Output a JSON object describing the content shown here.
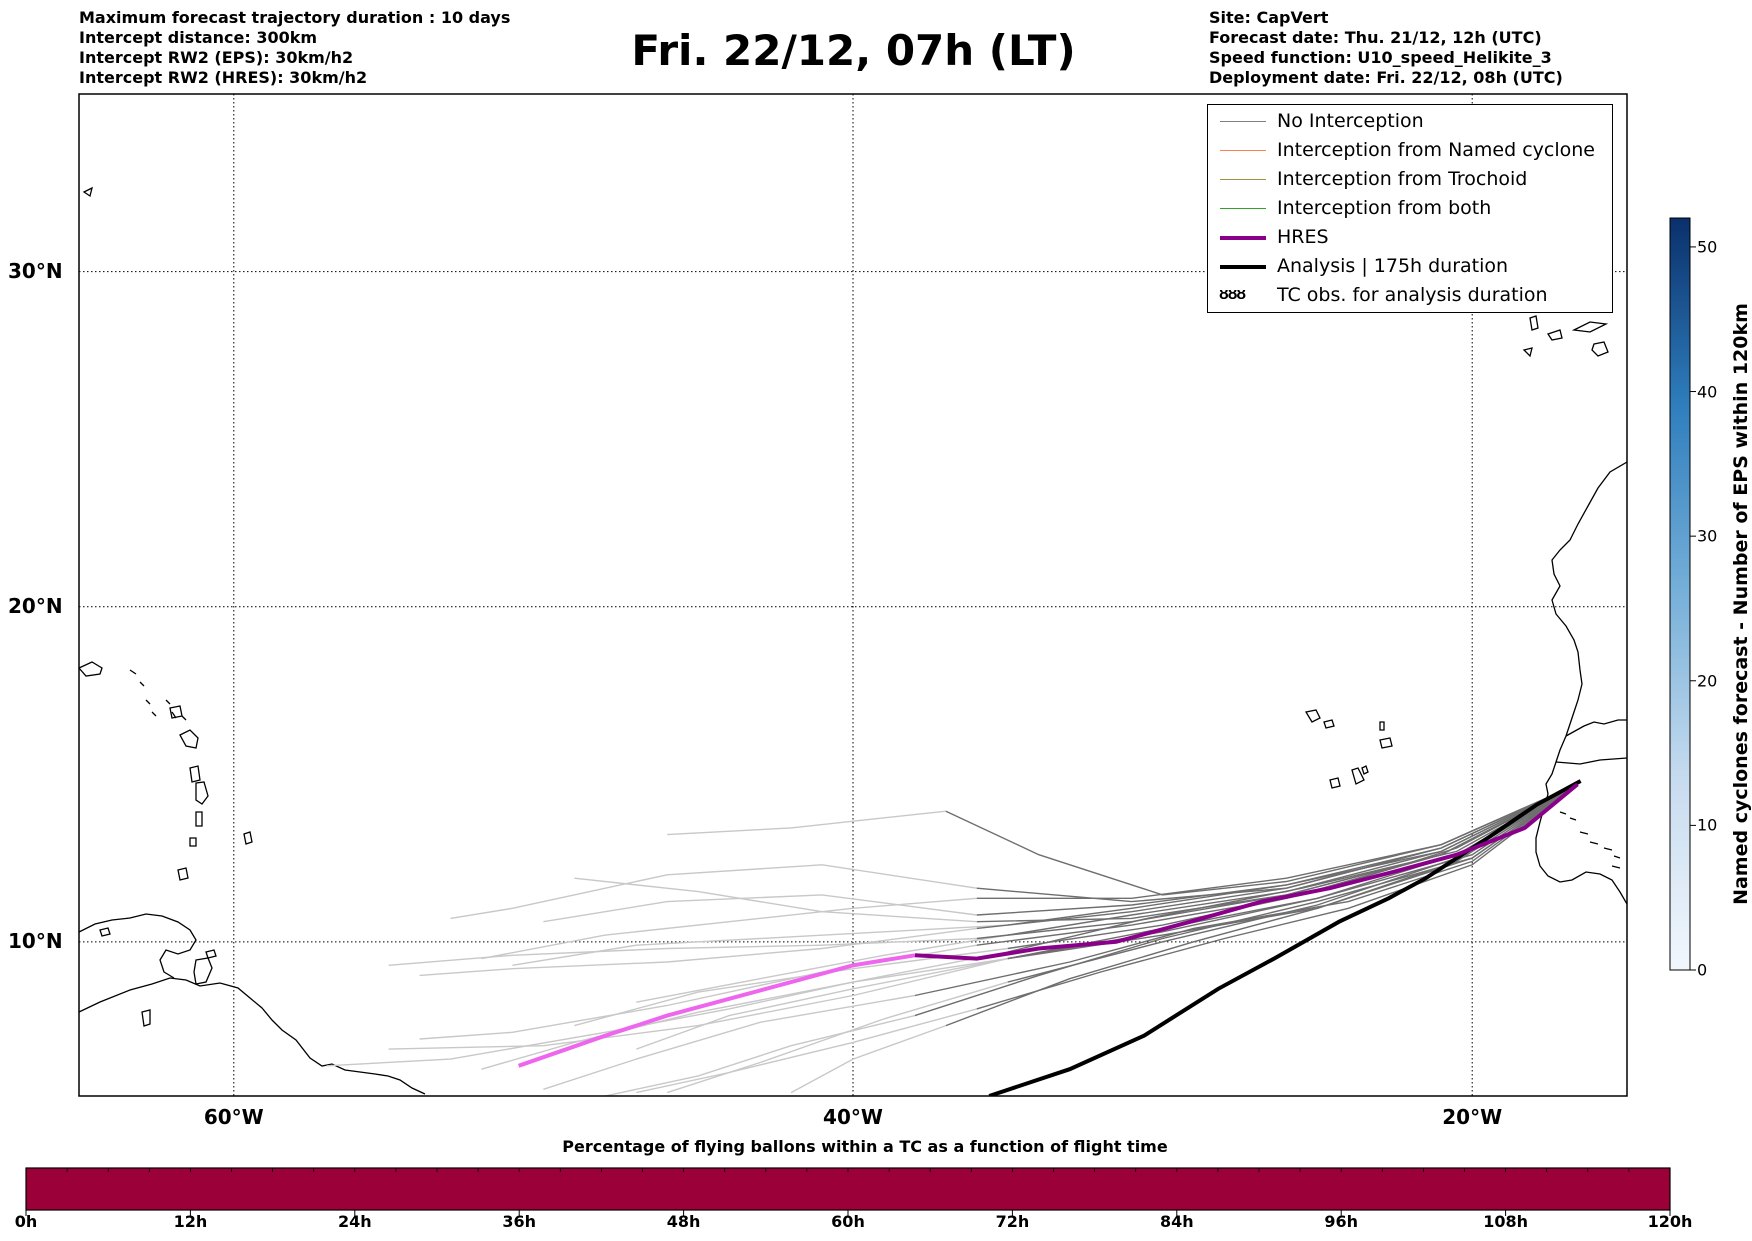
{
  "header_left": [
    "Maximum forecast trajectory duration : 10 days",
    "Intercept distance: 300km",
    "Intercept RW2 (EPS):  30km/h2",
    "Intercept RW2 (HRES): 30km/h2"
  ],
  "header_right": [
    "Site: CapVert",
    "Forecast date: Thu. 21/12, 12h (UTC)",
    "Speed function: U10_speed_Helikite_3",
    "Deployment date: Fri. 22/12, 08h (UTC)"
  ],
  "title": "Fri. 22/12, 07h (LT)",
  "map": {
    "lat_labels": [
      {
        "label": "30°N",
        "lat": 30
      },
      {
        "label": "20°N",
        "lat": 20
      },
      {
        "label": "10°N",
        "lat": 10
      }
    ],
    "lon_labels": [
      {
        "label": "60°W",
        "lon": -60
      },
      {
        "label": "40°W",
        "lon": -40
      },
      {
        "label": "20°W",
        "lon": -20
      }
    ],
    "extent": {
      "lon_min": -65,
      "lon_max": -15,
      "lat_min": 5.4,
      "lat_max": 35.3
    },
    "gridlines": "dotted"
  },
  "legend": {
    "placement": "top-right",
    "items": [
      {
        "label": "No Interception",
        "color": "#808080",
        "width": 1.5
      },
      {
        "label": "Interception from Named cyclone",
        "color": "#ff7f50",
        "width": 1.5
      },
      {
        "label": "Interception from Trochoid",
        "color": "#a09040",
        "width": 1.5
      },
      {
        "label": "Interception from both",
        "color": "#33a02c",
        "width": 1.5
      },
      {
        "label": "HRES",
        "color": "#8b008b",
        "width": 4
      },
      {
        "label": "Analysis | 175h duration",
        "color": "#000000",
        "width": 4
      },
      {
        "label": "TC obs. for analysis duration",
        "symbol": "ᴕᴕᴕ"
      }
    ]
  },
  "colors": {
    "eps_late": "#6e6e6e",
    "eps_early": "#c8c8c8",
    "hres_early": "#ee66ee",
    "hres_late": "#8b008b",
    "analysis": "#000000",
    "timebar": "#9b0038"
  },
  "colorbar": {
    "title": "Named cyclones forecast - Number of EPS within 120km",
    "ticks": [
      0,
      10,
      20,
      30,
      40,
      50
    ],
    "range": [
      0,
      52
    ]
  },
  "timebar": {
    "title": "Percentage of flying ballons within a TC as a function of flight time",
    "ticks": [
      "0h",
      "12h",
      "24h",
      "36h",
      "48h",
      "60h",
      "72h",
      "84h",
      "96h",
      "108h",
      "120h"
    ]
  },
  "tracks": {
    "analysis": [
      [
        -16.5,
        14.8
      ],
      [
        -17.9,
        14.1
      ],
      [
        -19.5,
        13.1
      ],
      [
        -21.5,
        11.9
      ],
      [
        -22.7,
        11.3
      ],
      [
        -24.3,
        10.6
      ],
      [
        -26.4,
        9.5
      ],
      [
        -28.2,
        8.6
      ],
      [
        -30.6,
        7.2
      ],
      [
        -33.0,
        6.2
      ],
      [
        -35.6,
        5.4
      ]
    ],
    "hres": [
      [
        -16.6,
        14.7
      ],
      [
        -18.3,
        13.4
      ],
      [
        -20.5,
        12.6
      ],
      [
        -22.5,
        12.1
      ],
      [
        -24.6,
        11.6
      ],
      [
        -26.8,
        11.2
      ],
      [
        -29.1,
        10.6
      ],
      [
        -31.5,
        10.0
      ],
      [
        -34.0,
        9.8
      ],
      [
        -36.0,
        9.5
      ],
      [
        -38.0,
        9.6
      ],
      [
        -40.0,
        9.3
      ],
      [
        -42.0,
        8.8
      ],
      [
        -44.0,
        8.3
      ],
      [
        -46.0,
        7.8
      ],
      [
        -48.0,
        7.2
      ],
      [
        -50.8,
        6.3
      ]
    ],
    "eps": [
      [
        [
          -16.6,
          14.7
        ],
        [
          -20.5,
          12.8
        ],
        [
          -25.0,
          11.5
        ],
        [
          -30.0,
          10.5
        ],
        [
          -35.0,
          9.8
        ],
        [
          -40.0,
          9.2
        ],
        [
          -45.0,
          8.5
        ],
        [
          -49.0,
          7.5
        ]
      ],
      [
        [
          -16.6,
          14.7
        ],
        [
          -20.0,
          12.5
        ],
        [
          -25.0,
          11.0
        ],
        [
          -30.0,
          10.2
        ],
        [
          -35.0,
          9.5
        ],
        [
          -40.0,
          8.6
        ],
        [
          -44.0,
          7.8
        ],
        [
          -47.0,
          6.8
        ]
      ],
      [
        [
          -16.6,
          14.7
        ],
        [
          -21.0,
          12.9
        ],
        [
          -26.0,
          11.8
        ],
        [
          -30.0,
          11.4
        ],
        [
          -34.0,
          12.6
        ],
        [
          -37.0,
          13.9
        ],
        [
          -42.0,
          13.4
        ],
        [
          -46.0,
          13.2
        ]
      ],
      [
        [
          -16.6,
          14.7
        ],
        [
          -21.0,
          12.7
        ],
        [
          -26.0,
          11.7
        ],
        [
          -31.0,
          11.1
        ],
        [
          -36.0,
          10.8
        ],
        [
          -41.0,
          11.4
        ],
        [
          -46.0,
          11.2
        ],
        [
          -50.0,
          10.6
        ]
      ],
      [
        [
          -16.6,
          14.7
        ],
        [
          -20.0,
          12.4
        ],
        [
          -24.0,
          11.2
        ],
        [
          -29.0,
          10.4
        ],
        [
          -33.0,
          9.4
        ],
        [
          -38.0,
          8.4
        ],
        [
          -43.0,
          7.6
        ],
        [
          -47.0,
          6.5
        ],
        [
          -50.0,
          5.6
        ]
      ],
      [
        [
          -16.6,
          14.7
        ],
        [
          -21.0,
          12.6
        ],
        [
          -26.0,
          11.4
        ],
        [
          -31.0,
          10.7
        ],
        [
          -36.0,
          10.6
        ],
        [
          -41.0,
          10.9
        ],
        [
          -45.0,
          11.5
        ],
        [
          -49.0,
          11.9
        ]
      ],
      [
        [
          -16.6,
          14.7
        ],
        [
          -20.5,
          12.5
        ],
        [
          -25.0,
          11.1
        ],
        [
          -30.0,
          10.0
        ],
        [
          -35.0,
          8.8
        ],
        [
          -39.0,
          7.7
        ],
        [
          -43.0,
          6.4
        ],
        [
          -46.0,
          5.5
        ]
      ],
      [
        [
          -16.6,
          14.7
        ],
        [
          -21.0,
          12.8
        ],
        [
          -26.0,
          11.6
        ],
        [
          -31.0,
          10.9
        ],
        [
          -36.0,
          10.4
        ],
        [
          -41.0,
          9.8
        ],
        [
          -46.0,
          9.4
        ],
        [
          -51.0,
          9.2
        ],
        [
          -54.0,
          9.0
        ]
      ],
      [
        [
          -16.6,
          14.7
        ],
        [
          -20.0,
          12.6
        ],
        [
          -25.0,
          11.3
        ],
        [
          -30.0,
          10.3
        ],
        [
          -35.0,
          9.5
        ],
        [
          -40.0,
          8.4
        ],
        [
          -45.0,
          7.5
        ],
        [
          -50.0,
          6.9
        ],
        [
          -55.0,
          6.8
        ]
      ],
      [
        [
          -16.6,
          14.7
        ],
        [
          -21.0,
          12.7
        ],
        [
          -26.0,
          11.5
        ],
        [
          -31.0,
          10.8
        ],
        [
          -35.0,
          10.2
        ],
        [
          -39.0,
          9.6
        ],
        [
          -43.0,
          8.9
        ],
        [
          -47.0,
          8.2
        ]
      ],
      [
        [
          -16.6,
          14.7
        ],
        [
          -20.5,
          12.4
        ],
        [
          -25.0,
          11.0
        ],
        [
          -29.0,
          10.0
        ],
        [
          -33.0,
          8.9
        ],
        [
          -37.0,
          7.5
        ],
        [
          -40.0,
          6.5
        ],
        [
          -42.0,
          5.5
        ]
      ],
      [
        [
          -16.6,
          14.7
        ],
        [
          -21.0,
          12.9
        ],
        [
          -26.0,
          11.9
        ],
        [
          -31.0,
          11.3
        ],
        [
          -36.0,
          11.3
        ],
        [
          -40.0,
          11.0
        ],
        [
          -44.0,
          10.6
        ],
        [
          -48.0,
          10.2
        ],
        [
          -52.0,
          9.5
        ]
      ],
      [
        [
          -16.6,
          14.7
        ],
        [
          -20.0,
          12.3
        ],
        [
          -24.0,
          11.0
        ],
        [
          -28.0,
          10.1
        ],
        [
          -32.0,
          9.1
        ],
        [
          -36.0,
          8.0
        ],
        [
          -40.0,
          7.0
        ],
        [
          -44.0,
          6.1
        ],
        [
          -47.0,
          5.5
        ]
      ],
      [
        [
          -16.6,
          14.7
        ],
        [
          -21.0,
          12.6
        ],
        [
          -26.0,
          11.3
        ],
        [
          -31.0,
          10.5
        ],
        [
          -36.0,
          9.9
        ],
        [
          -41.0,
          9.1
        ],
        [
          -46.0,
          8.1
        ],
        [
          -51.0,
          7.3
        ],
        [
          -54.0,
          7.1
        ]
      ],
      [
        [
          -16.6,
          14.7
        ],
        [
          -20.5,
          12.7
        ],
        [
          -25.5,
          11.6
        ],
        [
          -30.5,
          10.7
        ],
        [
          -35.0,
          9.7
        ],
        [
          -40.0,
          8.8
        ],
        [
          -45.0,
          7.9
        ],
        [
          -49.0,
          7.0
        ],
        [
          -52.0,
          6.2
        ]
      ],
      [
        [
          -16.6,
          14.7
        ],
        [
          -21.0,
          12.8
        ],
        [
          -26.0,
          11.7
        ],
        [
          -31.0,
          11.0
        ],
        [
          -35.0,
          10.5
        ],
        [
          -39.0,
          10.3
        ],
        [
          -43.0,
          10.1
        ],
        [
          -47.0,
          9.9
        ],
        [
          -51.0,
          9.3
        ]
      ],
      [
        [
          -16.6,
          14.7
        ],
        [
          -20.0,
          12.5
        ],
        [
          -25.0,
          11.2
        ],
        [
          -30.0,
          10.1
        ],
        [
          -34.0,
          9.0
        ],
        [
          -38.0,
          7.8
        ],
        [
          -42.0,
          6.9
        ],
        [
          -45.0,
          6.0
        ],
        [
          -48.0,
          5.4
        ]
      ],
      [
        [
          -16.6,
          14.7
        ],
        [
          -21.0,
          12.6
        ],
        [
          -26.0,
          11.4
        ],
        [
          -31.0,
          10.6
        ],
        [
          -36.0,
          10.1
        ],
        [
          -41.0,
          9.9
        ],
        [
          -46.0,
          9.8
        ],
        [
          -51.0,
          9.6
        ],
        [
          -55.0,
          9.3
        ]
      ],
      [
        [
          -16.6,
          14.7
        ],
        [
          -20.5,
          12.6
        ],
        [
          -25.0,
          11.3
        ],
        [
          -30.0,
          10.4
        ],
        [
          -35.0,
          9.5
        ],
        [
          -40.0,
          8.8
        ],
        [
          -44.0,
          8.0
        ],
        [
          -48.0,
          7.3
        ],
        [
          -53.0,
          6.5
        ],
        [
          -57.0,
          6.3
        ]
      ],
      [
        [
          -16.6,
          14.7
        ],
        [
          -21.0,
          12.8
        ],
        [
          -26.0,
          11.6
        ],
        [
          -31.0,
          11.2
        ],
        [
          -36.0,
          11.6
        ],
        [
          -41.0,
          12.3
        ],
        [
          -46.0,
          12.0
        ],
        [
          -51.0,
          11.0
        ],
        [
          -53.0,
          10.7
        ]
      ]
    ]
  }
}
